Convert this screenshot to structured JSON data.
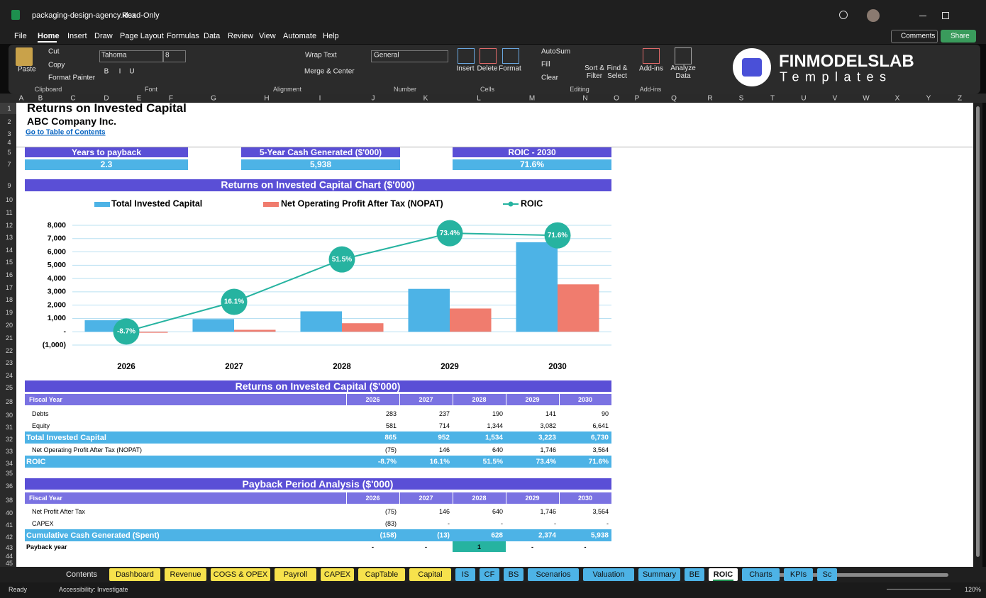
{
  "window": {
    "file": "packaging-design-agency.xlsx",
    "mode": "Read-Only",
    "comments": "Comments",
    "share": "Share"
  },
  "ribbon": {
    "tabs": [
      "File",
      "Home",
      "Insert",
      "Draw",
      "Page Layout",
      "Formulas",
      "Data",
      "Review",
      "View",
      "Automate",
      "Help"
    ],
    "clipboard": {
      "paste": "Paste",
      "cut": "Cut",
      "copy": "Copy",
      "format_painter": "Format Painter",
      "group": "Clipboard"
    },
    "font": {
      "name": "Tahoma",
      "size": "8",
      "styles": [
        "B",
        "I",
        "U"
      ],
      "group": "Font"
    },
    "alignment": {
      "wrap": "Wrap Text",
      "merge": "Merge & Center",
      "group": "Alignment"
    },
    "number": {
      "format": "General",
      "group": "Number"
    },
    "cells": {
      "insert": "Insert",
      "delete": "Delete",
      "format": "Format",
      "group": "Cells"
    },
    "editing": {
      "autosum": "AutoSum",
      "fill": "Fill",
      "clear": "Clear",
      "sort": "Sort & Filter",
      "find": "Find & Select",
      "group": "Editing"
    },
    "addins": {
      "button": "Add-ins",
      "group": "Add-ins"
    },
    "analyze": "Analyze Data",
    "logo": {
      "name": "FINMODELSLAB",
      "tagline": "Templates"
    }
  },
  "columns": [
    "A",
    "B",
    "C",
    "D",
    "E",
    "F",
    "G",
    "H",
    "I",
    "J",
    "K",
    "L",
    "M",
    "N",
    "O",
    "P",
    "Q",
    "R",
    "S",
    "T",
    "U",
    "V",
    "W",
    "X",
    "Y",
    "Z"
  ],
  "rows": [
    1,
    2,
    3,
    4,
    5,
    7,
    9,
    10,
    11,
    12,
    13,
    14,
    15,
    16,
    17,
    18,
    19,
    20,
    21,
    22,
    23,
    24,
    25,
    28,
    30,
    31,
    32,
    33,
    34,
    35,
    36,
    38,
    40,
    41,
    42,
    43,
    44,
    45
  ],
  "sheet": {
    "title": "Returns on Invested Capital",
    "company": "ABC Company Inc.",
    "link": "Go to Table of Contents",
    "header_color": "#5a4fd6",
    "subheader_color": "#7a72e2",
    "band_color": "#4db3e6",
    "kpis": [
      {
        "label": "Years to payback",
        "value": "2.3"
      },
      {
        "label": "5-Year Cash Generated ($'000)",
        "value": "5,938"
      },
      {
        "label": "ROIC - 2030",
        "value": "71.6%"
      }
    ],
    "tables": [
      {
        "title": "Returns on Invested Capital ($'000)",
        "columns": [
          "Fiscal Year",
          "2026",
          "2027",
          "2028",
          "2029",
          "2030"
        ],
        "rows": [
          {
            "label": "Debts",
            "values": [
              "283",
              "237",
              "190",
              "141",
              "90"
            ],
            "style": "plain"
          },
          {
            "label": "Equity",
            "values": [
              "581",
              "714",
              "1,344",
              "3,082",
              "6,641"
            ],
            "style": "plain"
          },
          {
            "label": "Total Invested Capital",
            "values": [
              "865",
              "952",
              "1,534",
              "3,223",
              "6,730"
            ],
            "style": "band"
          },
          {
            "label": "Net Operating Profit After Tax (NOPAT)",
            "values": [
              "(75)",
              "146",
              "640",
              "1,746",
              "3,564"
            ],
            "style": "plain"
          },
          {
            "label": "ROIC",
            "values": [
              "-8.7%",
              "16.1%",
              "51.5%",
              "73.4%",
              "71.6%"
            ],
            "style": "band"
          }
        ]
      },
      {
        "title": "Payback Period Analysis ($'000)",
        "columns": [
          "Fiscal Year",
          "2026",
          "2027",
          "2028",
          "2029",
          "2030"
        ],
        "rows": [
          {
            "label": "Net Profit After Tax",
            "values": [
              "(75)",
              "146",
              "640",
              "1,746",
              "3,564"
            ],
            "style": "plain"
          },
          {
            "label": "CAPEX",
            "values": [
              "(83)",
              "-",
              "-",
              "-",
              "-"
            ],
            "style": "plain"
          },
          {
            "label": "Cumulative Cash Generated (Spent)",
            "values": [
              "(158)",
              "(13)",
              "628",
              "2,374",
              "5,938"
            ],
            "style": "band"
          },
          {
            "label": "Payback year",
            "values": [
              "-",
              "-",
              "1",
              "-",
              "-"
            ],
            "style": "bold",
            "align": "center",
            "cell_colors": [
              null,
              null,
              "#26b3a0",
              null,
              null
            ]
          }
        ]
      }
    ]
  },
  "chart_data": {
    "type": "bar",
    "title": "Returns on Invested Capital Chart ($'000)",
    "categories": [
      "2026",
      "2027",
      "2028",
      "2029",
      "2030"
    ],
    "series": [
      {
        "name": "Total Invested Capital",
        "color": "#4db3e6",
        "values": [
          865,
          952,
          1534,
          3223,
          6730
        ]
      },
      {
        "name": "Net Operating Profit After Tax (NOPAT)",
        "color": "#f07c6e",
        "values": [
          -75,
          146,
          640,
          1746,
          3564
        ]
      },
      {
        "name": "ROIC",
        "type": "line",
        "axis": "y2",
        "color": "#26b3a0",
        "values": [
          -8.7,
          16.1,
          51.5,
          73.4,
          71.6
        ],
        "value_labels": [
          "-8.7%",
          "16.1%",
          "51.5%",
          "73.4%",
          "71.6%"
        ]
      }
    ],
    "ylim": [
      -1000,
      8000
    ],
    "yticks": [
      {
        "value": -1000,
        "label": "(1,000)"
      },
      {
        "value": 0,
        "label": "-"
      },
      {
        "value": 1000,
        "label": "1,000"
      },
      {
        "value": 2000,
        "label": "2,000"
      },
      {
        "value": 3000,
        "label": "3,000"
      },
      {
        "value": 4000,
        "label": "4,000"
      },
      {
        "value": 5000,
        "label": "5,000"
      },
      {
        "value": 6000,
        "label": "6,000"
      },
      {
        "value": 7000,
        "label": "7,000"
      },
      {
        "value": 8000,
        "label": "8,000"
      }
    ],
    "y2lim": [
      -20,
      80
    ],
    "grid": true,
    "legend": "top"
  },
  "tabs": [
    {
      "name": "Contents",
      "color": null
    },
    {
      "name": "Dashboard",
      "color": "#f7e24c"
    },
    {
      "name": "Revenue",
      "color": "#f7e24c"
    },
    {
      "name": "COGS & OPEX",
      "color": "#f7e24c"
    },
    {
      "name": "Payroll",
      "color": "#f7e24c"
    },
    {
      "name": "CAPEX",
      "color": "#f7e24c"
    },
    {
      "name": "CapTable",
      "color": "#f7e24c"
    },
    {
      "name": "Capital",
      "color": "#f7e24c"
    },
    {
      "name": "IS",
      "color": "#4db3e6"
    },
    {
      "name": "CF",
      "color": "#4db3e6"
    },
    {
      "name": "BS",
      "color": "#4db3e6"
    },
    {
      "name": "Scenarios",
      "color": "#4db3e6"
    },
    {
      "name": "Valuation",
      "color": "#4db3e6"
    },
    {
      "name": "Summary",
      "color": "#4db3e6"
    },
    {
      "name": "BE",
      "color": "#4db3e6"
    },
    {
      "name": "ROIC",
      "color": "#ffffff",
      "active": true
    },
    {
      "name": "Charts",
      "color": "#4db3e6"
    },
    {
      "name": "KPIs",
      "color": "#4db3e6"
    },
    {
      "name": "Sc",
      "color": "#4db3e6"
    }
  ],
  "status": {
    "ready": "Ready",
    "accessibility": "Accessibility: Investigate",
    "zoom": "120%"
  }
}
